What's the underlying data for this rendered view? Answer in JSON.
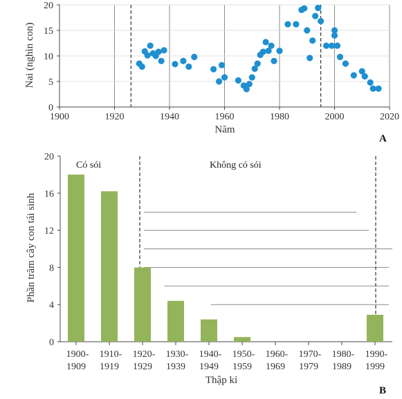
{
  "chart_data": [
    {
      "panel": "A",
      "type": "scatter",
      "xlabel": "Năm",
      "ylabel": "Nai (nghìn con)",
      "xlim": [
        1900,
        2020
      ],
      "ylim": [
        0,
        20
      ],
      "xticks": [
        "1900",
        "1920",
        "1940",
        "1960",
        "1980",
        "2000",
        "2020"
      ],
      "yticks": [
        "0",
        "5",
        "10",
        "15",
        "20"
      ],
      "grid": "vertical lines",
      "marker_color": "#1f8fd0",
      "reference_lines": [
        1926,
        1995
      ],
      "points": [
        {
          "x": 1929,
          "y": 8.5
        },
        {
          "x": 1930,
          "y": 7.9
        },
        {
          "x": 1931,
          "y": 10.9
        },
        {
          "x": 1932,
          "y": 10.1
        },
        {
          "x": 1933,
          "y": 12.0
        },
        {
          "x": 1934,
          "y": 10.5
        },
        {
          "x": 1935,
          "y": 10.0
        },
        {
          "x": 1936,
          "y": 10.8
        },
        {
          "x": 1937,
          "y": 9.0
        },
        {
          "x": 1938,
          "y": 11.1
        },
        {
          "x": 1942,
          "y": 8.4
        },
        {
          "x": 1945,
          "y": 9.0
        },
        {
          "x": 1947,
          "y": 7.9
        },
        {
          "x": 1949,
          "y": 9.8
        },
        {
          "x": 1956,
          "y": 7.4
        },
        {
          "x": 1958,
          "y": 5.0
        },
        {
          "x": 1959,
          "y": 8.2
        },
        {
          "x": 1960,
          "y": 5.8
        },
        {
          "x": 1965,
          "y": 5.2
        },
        {
          "x": 1967,
          "y": 4.2
        },
        {
          "x": 1968,
          "y": 3.5
        },
        {
          "x": 1969,
          "y": 4.5
        },
        {
          "x": 1970,
          "y": 5.8
        },
        {
          "x": 1971,
          "y": 7.5
        },
        {
          "x": 1972,
          "y": 8.5
        },
        {
          "x": 1973,
          "y": 10.2
        },
        {
          "x": 1974,
          "y": 10.8
        },
        {
          "x": 1975,
          "y": 12.7
        },
        {
          "x": 1976,
          "y": 11.0
        },
        {
          "x": 1977,
          "y": 12.0
        },
        {
          "x": 1978,
          "y": 9.0
        },
        {
          "x": 1980,
          "y": 11.0
        },
        {
          "x": 1983,
          "y": 16.2
        },
        {
          "x": 1986,
          "y": 16.2
        },
        {
          "x": 1988,
          "y": 19.0
        },
        {
          "x": 1989,
          "y": 19.3
        },
        {
          "x": 1990,
          "y": 15.0
        },
        {
          "x": 1991,
          "y": 9.6
        },
        {
          "x": 1993,
          "y": 17.8
        },
        {
          "x": 1994,
          "y": 19.4
        },
        {
          "x": 1995,
          "y": 16.8
        },
        {
          "x": 1992,
          "y": 13.0
        },
        {
          "x": 1997,
          "y": 12.0
        },
        {
          "x": 1999,
          "y": 12.0
        },
        {
          "x": 2000,
          "y": 15.0
        },
        {
          "x": 2000,
          "y": 14.0
        },
        {
          "x": 2001,
          "y": 12.0
        },
        {
          "x": 2002,
          "y": 9.8
        },
        {
          "x": 2004,
          "y": 8.5
        },
        {
          "x": 2007,
          "y": 6.2
        },
        {
          "x": 2010,
          "y": 7.0
        },
        {
          "x": 2011,
          "y": 6.0
        },
        {
          "x": 2013,
          "y": 4.8
        },
        {
          "x": 2014,
          "y": 3.6
        },
        {
          "x": 2016,
          "y": 3.6
        }
      ]
    },
    {
      "panel": "B",
      "type": "bar",
      "xlabel": "Thập kỉ",
      "ylabel": "Phần trăm cây con tái sinh",
      "ylim": [
        0,
        20
      ],
      "yticks": [
        "0",
        "4",
        "8",
        "12",
        "16",
        "20"
      ],
      "bar_color": "#93b45a",
      "categories": [
        [
          "1900-",
          "1909"
        ],
        [
          "1910-",
          "1919"
        ],
        [
          "1920-",
          "1929"
        ],
        [
          "1930-",
          "1939"
        ],
        [
          "1940-",
          "1949"
        ],
        [
          "1950-",
          "1959"
        ],
        [
          "1960-",
          "1969"
        ],
        [
          "1970-",
          "1979"
        ],
        [
          "1980-",
          "1989"
        ],
        [
          "1990-",
          "1999"
        ]
      ],
      "values": [
        18.0,
        16.2,
        8.0,
        4.4,
        2.4,
        0.5,
        0,
        0,
        0,
        2.9
      ],
      "regions": [
        "Có sói",
        "Không có sói"
      ]
    }
  ]
}
